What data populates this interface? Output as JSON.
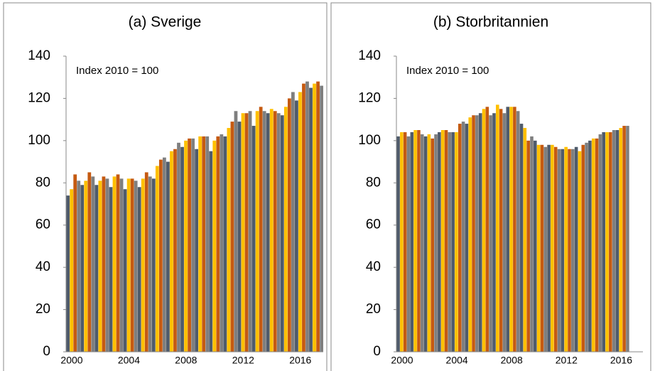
{
  "chart_data": [
    {
      "type": "bar",
      "title": "(a) Sverige",
      "annotation": "Index 2010 = 100",
      "categories": [
        "2000",
        null,
        null,
        null,
        null,
        null,
        null,
        null,
        null,
        null,
        null,
        null,
        null,
        null,
        null,
        null,
        "2004",
        null,
        null,
        null,
        null,
        null,
        null,
        null,
        null,
        null,
        null,
        null,
        null,
        null,
        null,
        null,
        "2008",
        null,
        null,
        null,
        null,
        null,
        null,
        null,
        null,
        null,
        null,
        null,
        null,
        null,
        null,
        null,
        "2012",
        null,
        null,
        null,
        null,
        null,
        null,
        null,
        null,
        null,
        null,
        null,
        null,
        null,
        null,
        null,
        "2016",
        null,
        null,
        null,
        null,
        null,
        null,
        null
      ],
      "values": [
        74,
        77,
        84,
        81,
        79,
        81,
        85,
        83,
        79,
        81,
        83,
        82,
        78,
        83,
        84,
        82,
        77,
        82,
        82,
        81,
        78,
        82,
        85,
        83,
        82,
        88,
        91,
        92,
        90,
        95,
        96,
        99,
        97,
        100,
        101,
        101,
        96,
        102,
        102,
        102,
        95,
        100,
        102,
        103,
        102,
        106,
        109,
        114,
        109,
        113,
        113,
        114,
        107,
        114,
        116,
        114,
        113,
        115,
        114,
        113,
        112,
        116,
        120,
        123,
        119,
        123,
        127,
        128,
        125,
        127,
        128,
        126
      ],
      "bar_colors": [
        "#4f5b6b",
        "#ffc000",
        "#c55a11",
        "#7f7f7f"
      ],
      "ylim": [
        0,
        140
      ],
      "yticks": [
        0,
        20,
        40,
        60,
        80,
        100,
        120,
        140
      ],
      "grid": false
    },
    {
      "type": "bar",
      "title": "(b) Storbritannien",
      "annotation": "Index 2010 = 100",
      "categories": [
        "2000",
        null,
        null,
        null,
        null,
        null,
        null,
        null,
        null,
        null,
        null,
        null,
        null,
        null,
        null,
        null,
        "2004",
        null,
        null,
        null,
        null,
        null,
        null,
        null,
        null,
        null,
        null,
        null,
        null,
        null,
        null,
        null,
        "2008",
        null,
        null,
        null,
        null,
        null,
        null,
        null,
        null,
        null,
        null,
        null,
        null,
        null,
        null,
        null,
        "2012",
        null,
        null,
        null,
        null,
        null,
        null,
        null,
        null,
        null,
        null,
        null,
        null,
        null,
        null,
        null,
        "2016",
        null,
        null,
        null
      ],
      "values": [
        102,
        104,
        104,
        102,
        104,
        105,
        105,
        103,
        102,
        103,
        101,
        103,
        104,
        105,
        105,
        104,
        104,
        104,
        108,
        109,
        108,
        111,
        112,
        112,
        113,
        115,
        116,
        112,
        113,
        117,
        115,
        113,
        116,
        116,
        116,
        114,
        108,
        106,
        100,
        102,
        100,
        98,
        98,
        97,
        98,
        98,
        97,
        96,
        96,
        97,
        96,
        96,
        97,
        95,
        98,
        99,
        100,
        101,
        101,
        103,
        104,
        104,
        104,
        105,
        105,
        106,
        107,
        107
      ],
      "bar_colors": [
        "#4f5b6b",
        "#ffc000",
        "#c55a11",
        "#7f7f7f"
      ],
      "ylim": [
        0,
        140
      ],
      "yticks": [
        0,
        20,
        40,
        60,
        80,
        100,
        120,
        140
      ],
      "grid": false
    }
  ]
}
